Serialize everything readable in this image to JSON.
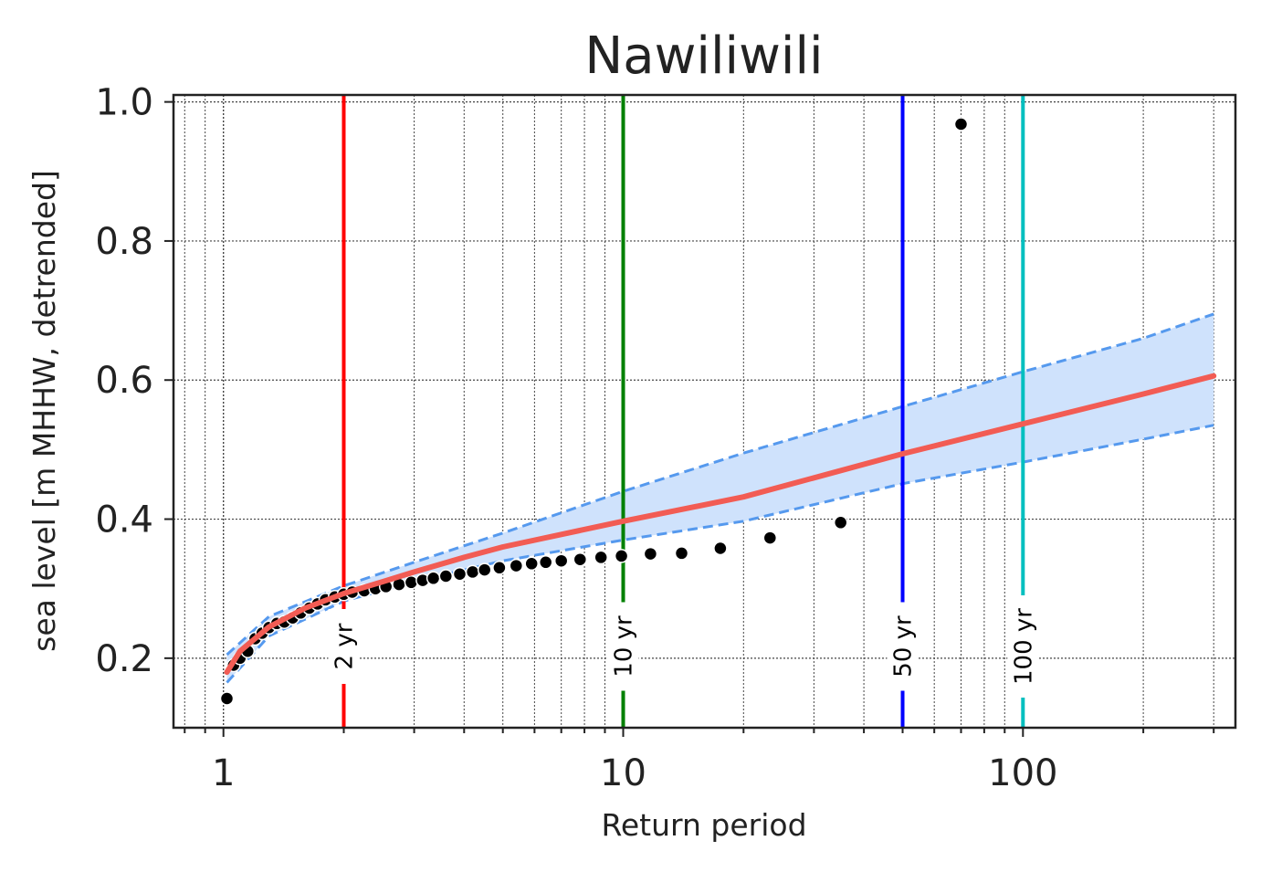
{
  "chart_data": {
    "type": "scatter",
    "title": "Nawiliwili",
    "xlabel": "Return period",
    "ylabel": "sea level [m MHHW, detrended]",
    "x_scale": "log",
    "xlim": [
      0.75,
      340
    ],
    "ylim": [
      0.1,
      1.01
    ],
    "x_ticks": [
      {
        "value": 1,
        "label": "1"
      },
      {
        "value": 10,
        "label": "10"
      },
      {
        "value": 100,
        "label": "100"
      }
    ],
    "y_ticks": [
      {
        "value": 0.2,
        "label": "0.2"
      },
      {
        "value": 0.4,
        "label": "0.4"
      },
      {
        "value": 0.6,
        "label": "0.6"
      },
      {
        "value": 0.8,
        "label": "0.8"
      },
      {
        "value": 1.0,
        "label": "1.0"
      }
    ],
    "grid": true,
    "colors": {
      "fit": "#f25c54",
      "band_fill": "#cfe2fc",
      "band_edge": "#5599ee",
      "points": "#000000",
      "frame": "#222222",
      "grid": "#444444"
    },
    "return_levels": [
      {
        "x": 2,
        "label": "2 yr",
        "color": "#ff0000"
      },
      {
        "x": 10,
        "label": "10 yr",
        "color": "#008000"
      },
      {
        "x": 50,
        "label": "50 yr",
        "color": "#0000ff"
      },
      {
        "x": 100,
        "label": "100 yr",
        "color": "#00bfbf"
      }
    ],
    "fit_line": {
      "x": [
        1.02,
        1.1,
        1.3,
        1.6,
        2,
        2.5,
        3,
        4,
        5,
        7,
        10,
        20,
        50,
        100,
        200,
        300
      ],
      "y": [
        0.18,
        0.21,
        0.245,
        0.272,
        0.293,
        0.31,
        0.324,
        0.345,
        0.36,
        0.378,
        0.397,
        0.432,
        0.494,
        0.537,
        0.58,
        0.606
      ]
    },
    "confidence_band": {
      "x": [
        1.02,
        1.3,
        2,
        3,
        5,
        10,
        20,
        50,
        100,
        200,
        300
      ],
      "upper": [
        0.205,
        0.26,
        0.304,
        0.338,
        0.38,
        0.44,
        0.495,
        0.562,
        0.612,
        0.66,
        0.695
      ],
      "lower": [
        0.165,
        0.232,
        0.282,
        0.31,
        0.34,
        0.37,
        0.397,
        0.451,
        0.482,
        0.515,
        0.535
      ]
    },
    "observations": {
      "x": [
        1.02,
        1.06,
        1.1,
        1.15,
        1.2,
        1.25,
        1.3,
        1.36,
        1.42,
        1.49,
        1.56,
        1.64,
        1.72,
        1.8,
        1.9,
        2.0,
        2.1,
        2.25,
        2.4,
        2.55,
        2.75,
        2.95,
        3.15,
        3.35,
        3.6,
        3.9,
        4.2,
        4.5,
        4.9,
        5.4,
        5.9,
        6.4,
        7.0,
        7.8,
        8.8,
        9.9,
        11.7,
        14.0,
        17.5,
        23.3,
        35.0,
        70.0
      ],
      "y": [
        0.142,
        0.19,
        0.2,
        0.21,
        0.228,
        0.236,
        0.244,
        0.25,
        0.252,
        0.258,
        0.265,
        0.272,
        0.278,
        0.284,
        0.288,
        0.292,
        0.295,
        0.297,
        0.3,
        0.303,
        0.306,
        0.309,
        0.312,
        0.315,
        0.318,
        0.321,
        0.324,
        0.327,
        0.33,
        0.333,
        0.336,
        0.338,
        0.34,
        0.342,
        0.345,
        0.347,
        0.35,
        0.351,
        0.358,
        0.373,
        0.395,
        0.968
      ]
    }
  }
}
